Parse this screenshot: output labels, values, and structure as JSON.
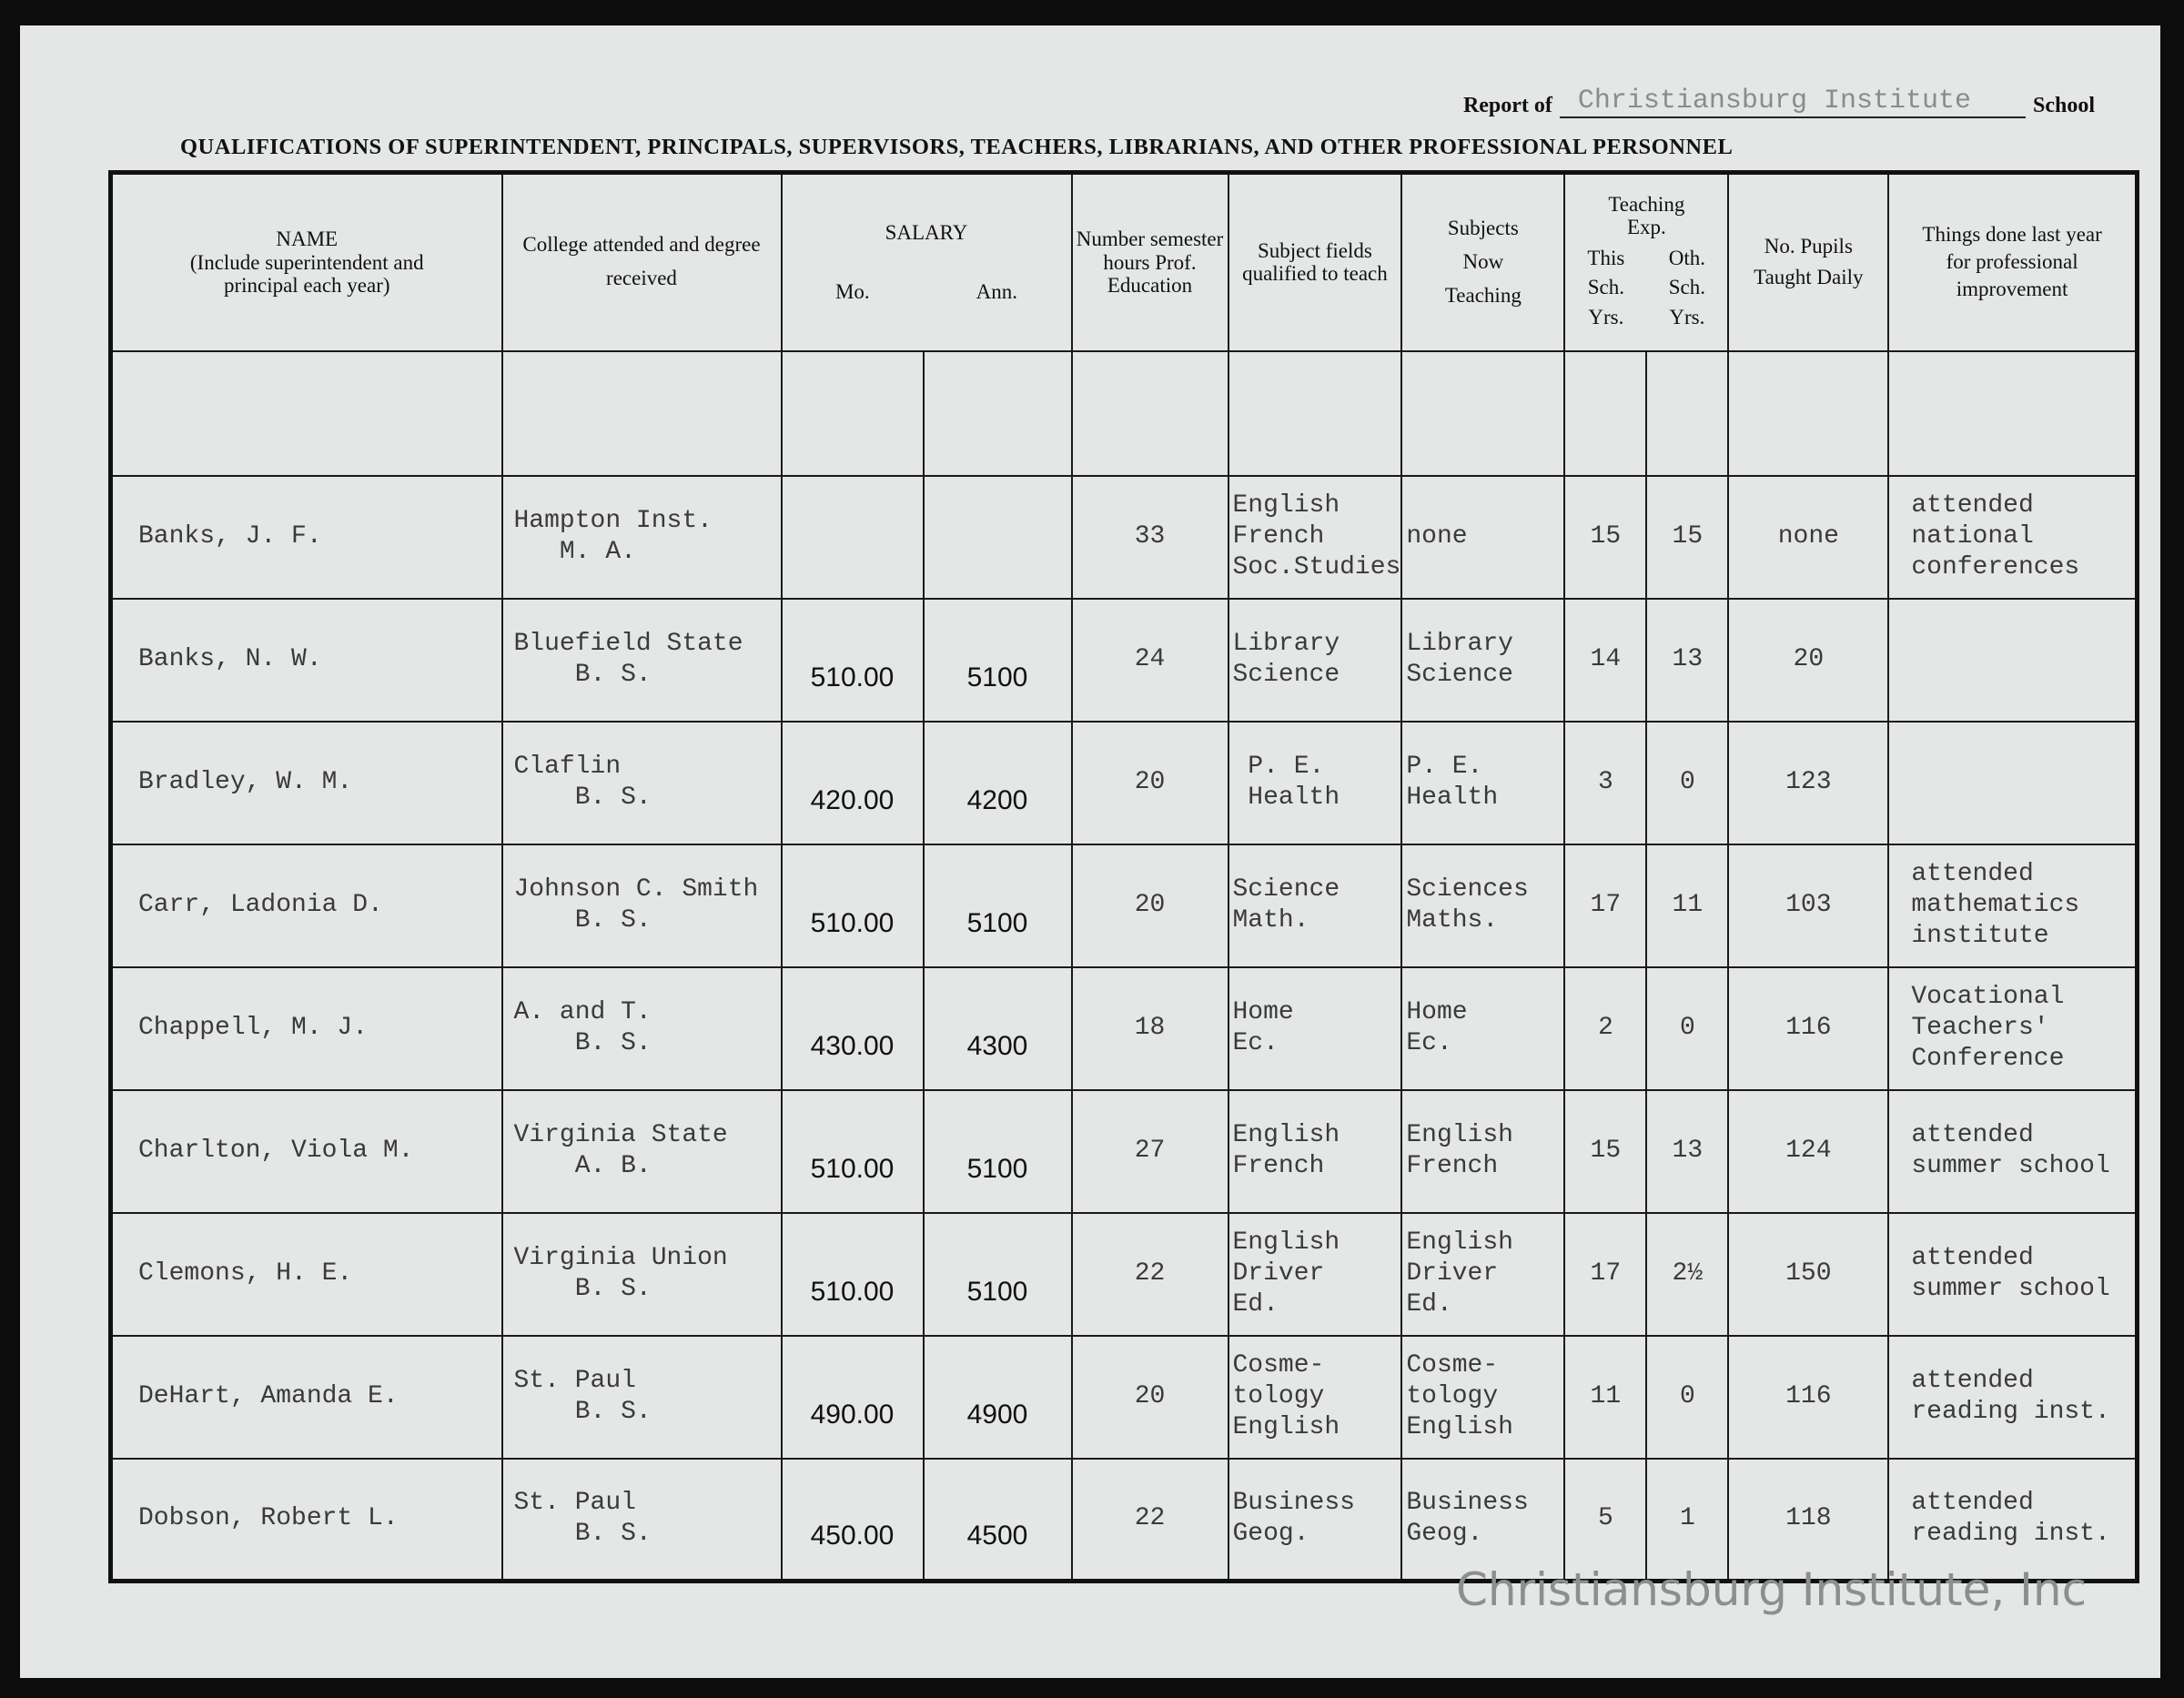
{
  "header": {
    "report_of_label": "Report of",
    "school_name": "Christiansburg Institute",
    "school_label": "School",
    "title": "QUALIFICATIONS OF SUPERINTENDENT, PRINCIPALS, SUPERVISORS, TEACHERS, LIBRARIANS, AND OTHER PROFESSIONAL PERSONNEL"
  },
  "columns": {
    "name": "NAME",
    "name_note": "(Include superintendent and principal each year)",
    "college": "College attended and degree received",
    "salary": "SALARY",
    "salary_mo": "Mo.",
    "salary_ann": "Ann.",
    "hours": "Number semester hours Prof. Education",
    "qualified": "Subject fields qualified to teach",
    "teaching": "Subjects Now Teaching",
    "exp": "Teaching Exp.",
    "exp_this": "This Sch. Yrs.",
    "exp_oth": "Oth. Sch. Yrs.",
    "pupils": "No. Pupils Taught Daily",
    "improvement": "Things done last year for professional improvement"
  },
  "rows": [
    {
      "name": "Banks, J. F.",
      "college": "Hampton Inst.\n   M. A.",
      "mo": "",
      "ann": "",
      "hours": "33",
      "qualified": "English\nFrench\nSoc.Studies",
      "teaching": "none",
      "this": "15",
      "oth": "15",
      "pupils": "none",
      "improvement": "attended\nnational\nconferences"
    },
    {
      "name": "Banks, N. W.",
      "college": "Bluefield State\n    B. S.",
      "mo": "510.00",
      "ann": "5100",
      "hours": "24",
      "qualified": "Library\nScience",
      "teaching": "Library\nScience",
      "this": "14",
      "oth": "13",
      "pupils": "20",
      "improvement": ""
    },
    {
      "name": "Bradley, W. M.",
      "college": "Claflin\n    B. S.",
      "mo": "420.00",
      "ann": "4200",
      "hours": "20",
      "qualified": " P. E.\n Health",
      "teaching": "P. E.\nHealth",
      "this": "3",
      "oth": "0",
      "pupils": "123",
      "improvement": ""
    },
    {
      "name": "Carr, Ladonia D.",
      "college": "Johnson C. Smith\n    B. S.",
      "mo": "510.00",
      "ann": "5100",
      "hours": "20",
      "qualified": "Science\nMath.",
      "teaching": "Sciences\nMaths.",
      "this": "17",
      "oth": "11",
      "pupils": "103",
      "improvement": "attended\nmathematics\ninstitute"
    },
    {
      "name": "Chappell, M. J.",
      "college": "A. and T.\n    B. S.",
      "mo": "430.00",
      "ann": "4300",
      "hours": "18",
      "qualified": "Home\nEc.",
      "teaching": "Home\nEc.",
      "this": "2",
      "oth": "0",
      "pupils": "116",
      "improvement": "Vocational\nTeachers'\nConference"
    },
    {
      "name": "Charlton, Viola M.",
      "college": "Virginia State\n    A. B.",
      "mo": "510.00",
      "ann": "5100",
      "hours": "27",
      "qualified": "English\nFrench",
      "teaching": "English\nFrench",
      "this": "15",
      "oth": "13",
      "pupils": "124",
      "improvement": "attended\nsummer school"
    },
    {
      "name": "Clemons, H. E.",
      "college": "Virginia Union\n    B. S.",
      "mo": "510.00",
      "ann": "5100",
      "hours": "22",
      "qualified": "English\nDriver\nEd.",
      "teaching": "English\nDriver\nEd.",
      "this": "17",
      "oth": "2½",
      "pupils": "150",
      "improvement": "attended\nsummer school"
    },
    {
      "name": "DeHart, Amanda E.",
      "college": "St. Paul\n    B. S.",
      "mo": "490.00",
      "ann": "4900",
      "hours": "20",
      "qualified": "Cosme-\ntology\nEnglish",
      "teaching": "Cosme-\ntology\nEnglish",
      "this": "11",
      "oth": "0",
      "pupils": "116",
      "improvement": "attended\nreading inst."
    },
    {
      "name": "Dobson, Robert L.",
      "college": "St. Paul\n    B. S.",
      "mo": "450.00",
      "ann": "4500",
      "hours": "22",
      "qualified": "Business\nGeog.",
      "teaching": "Business\nGeog.",
      "this": "5",
      "oth": "1",
      "pupils": "118",
      "improvement": "attended\nreading inst."
    }
  ],
  "watermark": "Christiansburg Institute, Inc"
}
